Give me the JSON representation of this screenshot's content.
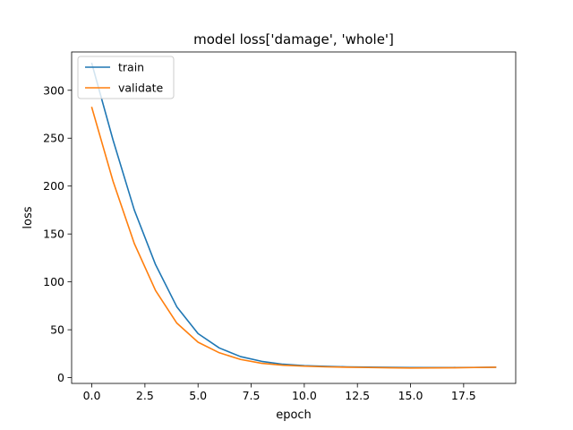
{
  "chart_data": {
    "type": "line",
    "title": "model loss['damage', 'whole']",
    "xlabel": "epoch",
    "ylabel": "loss",
    "xlim": [
      -0.95,
      19.95
    ],
    "ylim": [
      -6,
      340
    ],
    "x_ticks": [
      0.0,
      2.5,
      5.0,
      7.5,
      10.0,
      12.5,
      15.0,
      17.5
    ],
    "x_tick_labels": [
      "0.0",
      "2.5",
      "5.0",
      "7.5",
      "10.0",
      "12.5",
      "15.0",
      "17.5"
    ],
    "y_ticks": [
      0,
      50,
      100,
      150,
      200,
      250,
      300
    ],
    "y_tick_labels": [
      "0",
      "50",
      "100",
      "150",
      "200",
      "250",
      "300"
    ],
    "grid": false,
    "legend_position": "upper-left",
    "x": [
      0,
      1,
      2,
      3,
      4,
      5,
      6,
      7,
      8,
      9,
      10,
      11,
      12,
      13,
      14,
      15,
      16,
      17,
      18,
      19
    ],
    "series": [
      {
        "name": "train",
        "color": "#1f77b4",
        "values": [
          328,
          248,
          175,
          118,
          74,
          46,
          31,
          22,
          17,
          14,
          12.5,
          11.8,
          11.3,
          11,
          10.8,
          10.6,
          10.6,
          10.6,
          10.7,
          10.9
        ]
      },
      {
        "name": "validate",
        "color": "#ff7f0e",
        "values": [
          282,
          205,
          140,
          91,
          57,
          37,
          26,
          19,
          15,
          13,
          12,
          11.3,
          10.9,
          10.6,
          10.3,
          10.1,
          10.2,
          10.3,
          10.6,
          10.9
        ]
      }
    ]
  }
}
